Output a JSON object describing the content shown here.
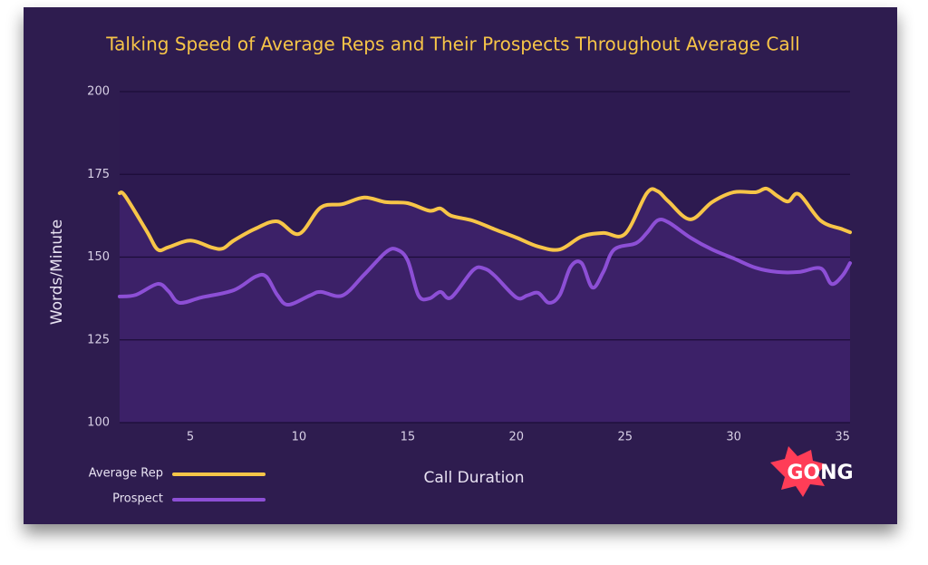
{
  "chart_data": {
    "type": "line",
    "title": "Talking Speed of Average Reps and Their Prospects Throughout Average Call",
    "xlabel": "Call Duration",
    "ylabel": "Words/Minute",
    "xlim": [
      1.75,
      35.35
    ],
    "ylim": [
      100,
      200
    ],
    "xticks": [
      5,
      10,
      15,
      20,
      25,
      30,
      35
    ],
    "yticks": [
      100,
      125,
      150,
      175,
      200
    ],
    "grid": true,
    "legend": "bottom-left",
    "series": [
      {
        "name": "Average Rep",
        "color": "#f7c548",
        "x": [
          1.75,
          2,
          3,
          3.5,
          4,
          5,
          6,
          6.5,
          7,
          8,
          9,
          10,
          11,
          12,
          13,
          14,
          15,
          16,
          16.5,
          17,
          18,
          19,
          20,
          21,
          22,
          23,
          24,
          25,
          26,
          26.5,
          27,
          28,
          29,
          30,
          31,
          31.5,
          32,
          32.5,
          33,
          34,
          35,
          35.35
        ],
        "values": [
          169.3,
          168.5,
          157.8,
          152.3,
          153,
          155,
          152.9,
          152.6,
          155,
          158.6,
          160.8,
          157,
          165,
          166,
          168,
          166.6,
          166.3,
          164,
          164.7,
          162.5,
          161,
          158.4,
          155.9,
          153.2,
          152.3,
          156.2,
          157.3,
          157,
          169.3,
          169.9,
          166.8,
          161.4,
          166.6,
          169.6,
          169.6,
          170.7,
          168.5,
          166.8,
          169,
          161,
          158.4,
          157.5
        ]
      },
      {
        "name": "Prospect",
        "color": "#8d4fd6",
        "x": [
          1.75,
          2.5,
          3.5,
          4,
          4.5,
          5.5,
          7,
          8,
          8.5,
          9,
          9.5,
          10.5,
          11,
          12,
          13,
          14,
          14.5,
          15,
          15.5,
          16,
          16.5,
          17,
          18,
          18.5,
          19,
          20,
          20.5,
          21,
          21.5,
          22,
          22.5,
          23,
          23.5,
          24,
          24.5,
          25.5,
          26,
          26.5,
          27,
          28,
          29,
          30,
          31,
          32,
          33,
          34,
          34.5,
          35,
          35.35
        ],
        "values": [
          138.1,
          138.6,
          141.9,
          139.7,
          136.2,
          137.8,
          140,
          144.1,
          144.1,
          138.6,
          135.6,
          138.4,
          139.5,
          138.4,
          144.7,
          151.5,
          152.3,
          149,
          138.4,
          137.5,
          139.5,
          137.8,
          146,
          146.6,
          144.4,
          137.8,
          138.4,
          139.2,
          136.2,
          138.6,
          147.1,
          148.2,
          140.8,
          145.5,
          152.3,
          154.2,
          157.3,
          161.1,
          160.5,
          155.9,
          152.3,
          149.6,
          146.8,
          145.5,
          145.5,
          146.6,
          141.9,
          144.4,
          148.2
        ]
      }
    ],
    "logo": "GONG"
  }
}
